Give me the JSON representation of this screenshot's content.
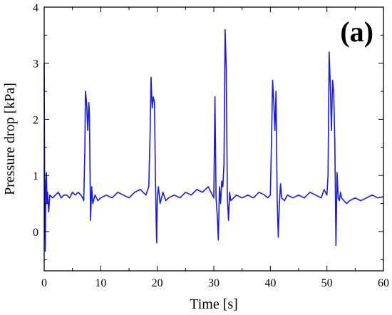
{
  "panel_label": "(a)",
  "chart_data": {
    "type": "line",
    "title": "",
    "xlabel": "Time [s]",
    "ylabel": "Pressure drop [kPa]",
    "xlim": [
      0,
      60
    ],
    "ylim": [
      -0.7,
      4
    ],
    "xticks": [
      0,
      10,
      20,
      30,
      40,
      50,
      60
    ],
    "yticks": [
      0,
      1,
      2,
      3,
      4
    ],
    "grid": false,
    "legend": "none",
    "series": [
      {
        "color": "#1a1adb",
        "x": [
          0.0,
          0.1,
          0.2,
          0.3,
          0.4,
          0.5,
          0.6,
          0.8,
          1.0,
          1.5,
          2.0,
          2.5,
          3.0,
          3.5,
          4.0,
          4.5,
          5.0,
          5.5,
          6.0,
          6.5,
          6.8,
          7.0,
          7.2,
          7.3,
          7.5,
          7.7,
          7.9,
          8.0,
          8.2,
          8.4,
          8.6,
          9.0,
          9.5,
          10.0,
          11.0,
          12.0,
          13.0,
          14.0,
          15.0,
          16.0,
          17.0,
          17.5,
          18.0,
          18.5,
          18.7,
          18.9,
          19.1,
          19.3,
          19.5,
          19.7,
          19.8,
          19.9,
          20.0,
          20.2,
          20.5,
          21.0,
          21.5,
          22.0,
          23.0,
          24.0,
          25.0,
          26.0,
          27.0,
          28.0,
          29.0,
          29.5,
          30.0,
          30.2,
          30.4,
          30.6,
          30.8,
          31.0,
          31.2,
          31.4,
          31.6,
          31.8,
          32.0,
          32.2,
          32.4,
          32.6,
          32.8,
          33.0,
          33.5,
          34.0,
          35.0,
          36.0,
          37.0,
          38.0,
          39.0,
          39.5,
          40.0,
          40.2,
          40.4,
          40.6,
          40.8,
          41.0,
          41.2,
          41.4,
          41.6,
          41.8,
          42.0,
          42.5,
          43.0,
          44.0,
          45.0,
          46.0,
          47.0,
          48.0,
          49.0,
          49.5,
          50.0,
          50.2,
          50.4,
          50.6,
          50.8,
          51.0,
          51.2,
          51.4,
          51.6,
          51.8,
          52.0,
          52.2,
          52.4,
          52.6,
          53.0,
          53.5,
          54.0,
          55.0,
          56.0,
          57.0,
          58.0,
          59.0,
          60.0
        ],
        "y": [
          3.0,
          0.5,
          -0.35,
          0.9,
          1.05,
          0.5,
          0.7,
          0.35,
          0.65,
          0.6,
          0.65,
          0.7,
          0.6,
          0.65,
          0.65,
          0.6,
          0.7,
          0.65,
          0.7,
          0.65,
          0.6,
          0.55,
          1.5,
          2.5,
          2.3,
          1.8,
          2.3,
          2.1,
          0.2,
          0.8,
          0.5,
          0.65,
          0.55,
          0.6,
          0.65,
          0.6,
          0.7,
          0.65,
          0.6,
          0.7,
          0.75,
          0.7,
          0.65,
          0.8,
          1.6,
          2.75,
          2.2,
          2.4,
          2.3,
          0.8,
          0.2,
          -0.2,
          0.6,
          0.8,
          0.5,
          0.7,
          0.55,
          0.6,
          0.65,
          0.6,
          0.7,
          0.65,
          0.75,
          0.7,
          0.8,
          0.7,
          0.6,
          2.4,
          0.6,
          0.3,
          -0.15,
          0.8,
          0.5,
          0.9,
          0.8,
          1.2,
          3.6,
          2.9,
          0.6,
          0.2,
          0.7,
          0.55,
          0.6,
          0.65,
          0.6,
          0.65,
          0.6,
          0.7,
          0.65,
          0.6,
          0.65,
          1.6,
          2.7,
          2.3,
          1.8,
          2.5,
          0.6,
          -0.1,
          0.5,
          0.85,
          0.6,
          0.55,
          0.65,
          0.6,
          0.65,
          0.6,
          0.7,
          0.65,
          0.6,
          0.75,
          0.65,
          1.0,
          3.2,
          2.6,
          1.8,
          2.7,
          2.5,
          1.6,
          -0.25,
          1.05,
          0.6,
          0.55,
          0.7,
          0.6,
          0.55,
          0.5,
          0.55,
          0.6,
          0.55,
          0.6,
          0.65,
          0.6,
          0.62
        ]
      }
    ]
  }
}
